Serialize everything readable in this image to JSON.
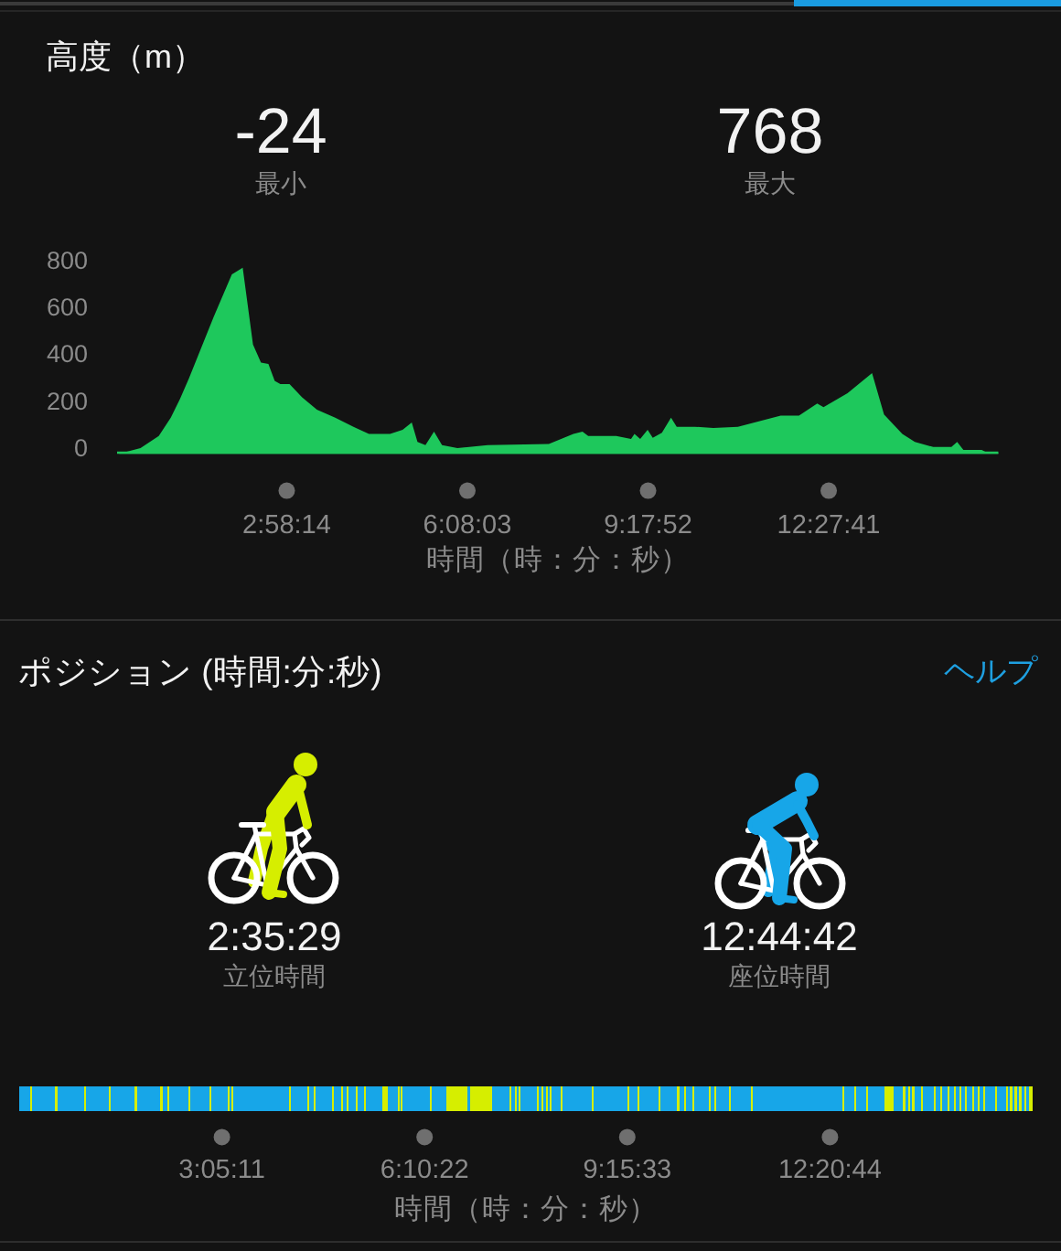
{
  "chart_data": [
    {
      "type": "area",
      "title": "高度（m）",
      "annotations": [
        "-24",
        "最小",
        "768",
        "最大"
      ],
      "x": [
        0.03,
        0.41,
        0.73,
        0.94,
        1.1,
        1.26,
        1.69,
        2.01,
        2.2,
        2.38,
        2.52,
        2.65,
        2.76,
        2.86,
        3.02,
        3.24,
        3.5,
        3.82,
        4.14,
        4.41,
        4.78,
        5.0,
        5.16,
        5.26,
        5.4,
        5.55,
        5.69,
        5.96,
        6.49,
        7.56,
        7.99,
        8.15,
        8.25,
        8.74,
        9.0,
        9.06,
        9.16,
        9.29,
        9.38,
        9.54,
        9.7,
        9.8,
        10.12,
        10.44,
        10.87,
        11.62,
        11.94,
        12.26,
        12.37,
        12.79,
        13.22,
        13.43,
        13.75,
        13.97,
        14.29,
        14.61,
        14.71,
        14.82,
        15.14,
        15.25,
        15.43
      ],
      "values": [
        -24,
        0,
        52,
        130,
        208,
        298,
        558,
        740,
        768,
        441,
        364,
        358,
        286,
        273,
        273,
        216,
        164,
        130,
        91,
        60,
        60,
        78,
        109,
        26,
        13,
        70,
        13,
        0,
        13,
        18,
        60,
        70,
        52,
        52,
        39,
        60,
        39,
        78,
        44,
        65,
        130,
        91,
        91,
        86,
        91,
        138,
        138,
        190,
        174,
        234,
        319,
        143,
        60,
        26,
        5,
        5,
        26,
        -8,
        -8,
        -21,
        -18
      ],
      "color": "#1ec85c",
      "xlim": [
        0,
        15.43
      ],
      "ylim": [
        -24,
        800
      ],
      "yticks": [
        0,
        200,
        400,
        600,
        800
      ],
      "xticks": [
        {
          "value": 2.9706,
          "label": "2:58:14"
        },
        {
          "value": 6.1342,
          "label": "6:08:03"
        },
        {
          "value": 9.2978,
          "label": "9:17:52"
        },
        {
          "value": 12.4614,
          "label": "12:27:41"
        }
      ],
      "xlabel": "時間（時：分：秒）"
    },
    {
      "type": "bar",
      "orientation": "horizontal",
      "stacked": true,
      "title": "ポジション (時間:分:秒)",
      "annotations": [
        "ヘルプ",
        "2:35:29",
        "立位時間",
        "12:44:42",
        "座位時間"
      ],
      "categories": [
        null
      ],
      "series": [
        {
          "color": "#17a6e8",
          "values": [
            0.17
          ]
        },
        {
          "color": "#d6ee00",
          "values": [
            0.03
          ]
        },
        {
          "color": "#17a6e8",
          "values": [
            0.35
          ]
        },
        {
          "color": "#d6ee00",
          "values": [
            0.03
          ]
        },
        {
          "color": "#17a6e8",
          "values": [
            0.41
          ]
        },
        {
          "color": "#d6ee00",
          "values": [
            0.03
          ]
        },
        {
          "color": "#17a6e8",
          "values": [
            0.34
          ]
        },
        {
          "color": "#d6ee00",
          "values": [
            0.03
          ]
        },
        {
          "color": "#17a6e8",
          "values": [
            0.37
          ]
        },
        {
          "color": "#d6ee00",
          "values": [
            0.03
          ]
        },
        {
          "color": "#17a6e8",
          "values": [
            0.36
          ]
        },
        {
          "color": "#d6ee00",
          "values": [
            0.04
          ]
        },
        {
          "color": "#17a6e8",
          "values": [
            0.06
          ]
        },
        {
          "color": "#d6ee00",
          "values": [
            0.04
          ]
        },
        {
          "color": "#17a6e8",
          "values": [
            0.28
          ]
        },
        {
          "color": "#d6ee00",
          "values": [
            0.03
          ]
        },
        {
          "color": "#17a6e8",
          "values": [
            0.3
          ]
        },
        {
          "color": "#d6ee00",
          "values": [
            0.03
          ]
        },
        {
          "color": "#17a6e8",
          "values": [
            0.24
          ]
        },
        {
          "color": "#d6ee00",
          "values": [
            0.03
          ]
        },
        {
          "color": "#17a6e8",
          "values": [
            0.03
          ]
        },
        {
          "color": "#d6ee00",
          "values": [
            0.03
          ]
        },
        {
          "color": "#17a6e8",
          "values": [
            0.85
          ]
        },
        {
          "color": "#d6ee00",
          "values": [
            0.03
          ]
        },
        {
          "color": "#17a6e8",
          "values": [
            0.25
          ]
        },
        {
          "color": "#d6ee00",
          "values": [
            0.03
          ]
        },
        {
          "color": "#17a6e8",
          "values": [
            0.06
          ]
        },
        {
          "color": "#d6ee00",
          "values": [
            0.03
          ]
        },
        {
          "color": "#17a6e8",
          "values": [
            0.25
          ]
        },
        {
          "color": "#d6ee00",
          "values": [
            0.03
          ]
        },
        {
          "color": "#17a6e8",
          "values": [
            0.11
          ]
        },
        {
          "color": "#d6ee00",
          "values": [
            0.03
          ]
        },
        {
          "color": "#17a6e8",
          "values": [
            0.05
          ]
        },
        {
          "color": "#d6ee00",
          "values": [
            0.03
          ]
        },
        {
          "color": "#17a6e8",
          "values": [
            0.12
          ]
        },
        {
          "color": "#d6ee00",
          "values": [
            0.03
          ]
        },
        {
          "color": "#17a6e8",
          "values": [
            0.09
          ]
        },
        {
          "color": "#d6ee00",
          "values": [
            0.03
          ]
        },
        {
          "color": "#17a6e8",
          "values": [
            0.25
          ]
        },
        {
          "color": "#d6ee00",
          "values": [
            0.08
          ]
        },
        {
          "color": "#17a6e8",
          "values": [
            0.15
          ]
        },
        {
          "color": "#d6ee00",
          "values": [
            0.03
          ]
        },
        {
          "color": "#17a6e8",
          "values": [
            0.02
          ]
        },
        {
          "color": "#d6ee00",
          "values": [
            0.03
          ]
        },
        {
          "color": "#17a6e8",
          "values": [
            0.41
          ]
        },
        {
          "color": "#d6ee00",
          "values": [
            0.03
          ]
        },
        {
          "color": "#17a6e8",
          "values": [
            0.23
          ]
        },
        {
          "color": "#d6ee00",
          "values": [
            0.32
          ]
        },
        {
          "color": "#17a6e8",
          "values": [
            0.03
          ]
        },
        {
          "color": "#d6ee00",
          "values": [
            0.34
          ]
        },
        {
          "color": "#17a6e8",
          "values": [
            0.26
          ]
        },
        {
          "color": "#d6ee00",
          "values": [
            0.03
          ]
        },
        {
          "color": "#17a6e8",
          "values": [
            0.06
          ]
        },
        {
          "color": "#d6ee00",
          "values": [
            0.03
          ]
        },
        {
          "color": "#17a6e8",
          "values": [
            0.02
          ]
        },
        {
          "color": "#d6ee00",
          "values": [
            0.03
          ]
        },
        {
          "color": "#17a6e8",
          "values": [
            0.25
          ]
        },
        {
          "color": "#d6ee00",
          "values": [
            0.03
          ]
        },
        {
          "color": "#17a6e8",
          "values": [
            0.04
          ]
        },
        {
          "color": "#d6ee00",
          "values": [
            0.03
          ]
        },
        {
          "color": "#17a6e8",
          "values": [
            0.04
          ]
        },
        {
          "color": "#d6ee00",
          "values": [
            0.03
          ]
        },
        {
          "color": "#17a6e8",
          "values": [
            0.03
          ]
        },
        {
          "color": "#d6ee00",
          "values": [
            0.03
          ]
        },
        {
          "color": "#17a6e8",
          "values": [
            0.14
          ]
        },
        {
          "color": "#d6ee00",
          "values": [
            0.03
          ]
        },
        {
          "color": "#17a6e8",
          "values": [
            0.44
          ]
        },
        {
          "color": "#d6ee00",
          "values": [
            0.03
          ]
        },
        {
          "color": "#17a6e8",
          "values": [
            0.51
          ]
        },
        {
          "color": "#d6ee00",
          "values": [
            0.03
          ]
        },
        {
          "color": "#17a6e8",
          "values": [
            0.13
          ]
        },
        {
          "color": "#d6ee00",
          "values": [
            0.03
          ]
        },
        {
          "color": "#17a6e8",
          "values": [
            0.29
          ]
        },
        {
          "color": "#d6ee00",
          "values": [
            0.03
          ]
        },
        {
          "color": "#17a6e8",
          "values": [
            0.25
          ]
        },
        {
          "color": "#d6ee00",
          "values": [
            0.03
          ]
        },
        {
          "color": "#17a6e8",
          "values": [
            0.08
          ]
        },
        {
          "color": "#d6ee00",
          "values": [
            0.03
          ]
        },
        {
          "color": "#17a6e8",
          "values": [
            0.09
          ]
        },
        {
          "color": "#d6ee00",
          "values": [
            0.03
          ]
        },
        {
          "color": "#17a6e8",
          "values": [
            0.22
          ]
        },
        {
          "color": "#d6ee00",
          "values": [
            0.03
          ]
        },
        {
          "color": "#17a6e8",
          "values": [
            0.05
          ]
        },
        {
          "color": "#d6ee00",
          "values": [
            0.03
          ]
        },
        {
          "color": "#17a6e8",
          "values": [
            0.2
          ]
        },
        {
          "color": "#d6ee00",
          "values": [
            0.03
          ]
        },
        {
          "color": "#17a6e8",
          "values": [
            0.3
          ]
        },
        {
          "color": "#d6ee00",
          "values": [
            0.03
          ]
        },
        {
          "color": "#17a6e8",
          "values": [
            1.36
          ]
        },
        {
          "color": "#d6ee00",
          "values": [
            0.03
          ]
        },
        {
          "color": "#17a6e8",
          "values": [
            0.16
          ]
        },
        {
          "color": "#d6ee00",
          "values": [
            0.03
          ]
        },
        {
          "color": "#17a6e8",
          "values": [
            0.15
          ]
        },
        {
          "color": "#d6ee00",
          "values": [
            0.03
          ]
        },
        {
          "color": "#17a6e8",
          "values": [
            0.24
          ]
        },
        {
          "color": "#d6ee00",
          "values": [
            0.15
          ]
        },
        {
          "color": "#17a6e8",
          "values": [
            0.14
          ]
        },
        {
          "color": "#d6ee00",
          "values": [
            0.03
          ]
        },
        {
          "color": "#17a6e8",
          "values": [
            0.05
          ]
        },
        {
          "color": "#d6ee00",
          "values": [
            0.03
          ]
        },
        {
          "color": "#17a6e8",
          "values": [
            0.03
          ]
        },
        {
          "color": "#d6ee00",
          "values": [
            0.03
          ]
        },
        {
          "color": "#17a6e8",
          "values": [
            0.1
          ]
        },
        {
          "color": "#d6ee00",
          "values": [
            0.03
          ]
        },
        {
          "color": "#17a6e8",
          "values": [
            0.17
          ]
        },
        {
          "color": "#d6ee00",
          "values": [
            0.03
          ]
        },
        {
          "color": "#17a6e8",
          "values": [
            0.06
          ]
        },
        {
          "color": "#d6ee00",
          "values": [
            0.03
          ]
        },
        {
          "color": "#17a6e8",
          "values": [
            0.08
          ]
        },
        {
          "color": "#d6ee00",
          "values": [
            0.03
          ]
        },
        {
          "color": "#17a6e8",
          "values": [
            0.07
          ]
        },
        {
          "color": "#d6ee00",
          "values": [
            0.03
          ]
        },
        {
          "color": "#17a6e8",
          "values": [
            0.06
          ]
        },
        {
          "color": "#d6ee00",
          "values": [
            0.03
          ]
        },
        {
          "color": "#17a6e8",
          "values": [
            0.05
          ]
        },
        {
          "color": "#d6ee00",
          "values": [
            0.03
          ]
        },
        {
          "color": "#17a6e8",
          "values": [
            0.08
          ]
        },
        {
          "color": "#d6ee00",
          "values": [
            0.03
          ]
        },
        {
          "color": "#17a6e8",
          "values": [
            0.06
          ]
        },
        {
          "color": "#d6ee00",
          "values": [
            0.03
          ]
        },
        {
          "color": "#17a6e8",
          "values": [
            0.05
          ]
        },
        {
          "color": "#d6ee00",
          "values": [
            0.03
          ]
        },
        {
          "color": "#17a6e8",
          "values": [
            0.15
          ]
        },
        {
          "color": "#d6ee00",
          "values": [
            0.03
          ]
        },
        {
          "color": "#17a6e8",
          "values": [
            0.14
          ]
        },
        {
          "color": "#d6ee00",
          "values": [
            0.03
          ]
        },
        {
          "color": "#17a6e8",
          "values": [
            0.03
          ]
        },
        {
          "color": "#d6ee00",
          "values": [
            0.03
          ]
        },
        {
          "color": "#17a6e8",
          "values": [
            0.04
          ]
        },
        {
          "color": "#d6ee00",
          "values": [
            0.03
          ]
        },
        {
          "color": "#17a6e8",
          "values": [
            0.04
          ]
        },
        {
          "color": "#d6ee00",
          "values": [
            0.03
          ]
        },
        {
          "color": "#17a6e8",
          "values": [
            0.05
          ]
        },
        {
          "color": "#d6ee00",
          "values": [
            0.03
          ]
        },
        {
          "color": "#17a6e8",
          "values": [
            0.03
          ]
        },
        {
          "color": "#d6ee00",
          "values": [
            0.06
          ]
        }
      ],
      "xlim": [
        0,
        15.432
      ],
      "xticks": [
        {
          "value": 3.0864,
          "label": "3:05:11"
        },
        {
          "value": 6.1728,
          "label": "6:10:22"
        },
        {
          "value": 9.2592,
          "label": "9:15:33"
        },
        {
          "value": 12.3456,
          "label": "12:20:44"
        }
      ],
      "xlabel": "時間（時：分：秒）"
    }
  ]
}
